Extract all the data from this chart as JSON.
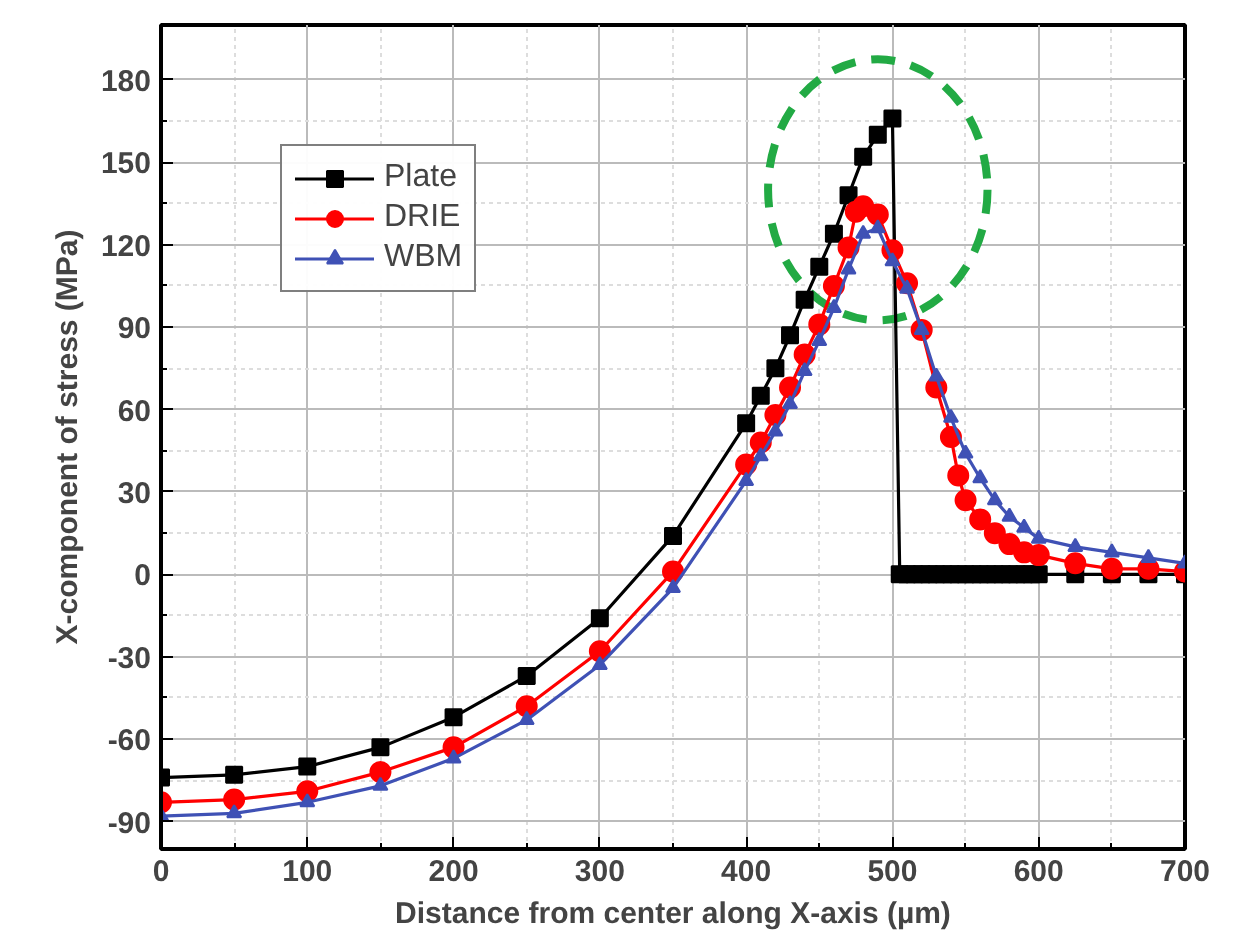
{
  "chart_data": {
    "type": "line",
    "xlabel": "Distance from center along X-axis (µm)",
    "ylabel": "X-component of stress (MPa)",
    "xlim": [
      0,
      700
    ],
    "ylim": [
      -100,
      200
    ],
    "xticks": [
      0,
      100,
      200,
      300,
      400,
      500,
      600,
      700
    ],
    "yticks": [
      -90,
      -60,
      -30,
      0,
      30,
      60,
      90,
      120,
      150,
      180
    ],
    "grid": true,
    "legend": "top left",
    "line_style": "solid",
    "series": [
      {
        "name": "Plate",
        "color": "#000000",
        "marker": "square",
        "x": [
          0,
          50,
          100,
          150,
          200,
          250,
          300,
          350,
          400,
          410,
          420,
          430,
          440,
          450,
          460,
          470,
          480,
          490,
          500,
          505,
          510,
          515,
          520,
          525,
          530,
          535,
          540,
          545,
          550,
          555,
          560,
          565,
          570,
          575,
          580,
          585,
          590,
          595,
          600,
          625,
          650,
          675,
          700
        ],
        "values": [
          -74,
          -73,
          -70,
          -63,
          -52,
          -37,
          -16,
          14,
          55,
          65,
          75,
          87,
          100,
          112,
          124,
          138,
          152,
          160,
          166,
          0,
          0,
          0,
          0,
          0,
          0,
          0,
          0,
          0,
          0,
          0,
          0,
          0,
          0,
          0,
          0,
          0,
          0,
          0,
          0,
          0,
          0,
          0,
          0
        ]
      },
      {
        "name": "DRIE",
        "color": "#ff0000",
        "marker": "circle",
        "x": [
          0,
          50,
          100,
          150,
          200,
          250,
          300,
          350,
          400,
          410,
          420,
          430,
          440,
          450,
          460,
          470,
          475,
          480,
          490,
          500,
          510,
          520,
          530,
          540,
          545,
          550,
          560,
          570,
          580,
          590,
          600,
          625,
          650,
          675,
          700
        ],
        "values": [
          -83,
          -82,
          -79,
          -72,
          -63,
          -48,
          -28,
          1,
          40,
          48,
          58,
          68,
          80,
          91,
          105,
          119,
          132,
          134,
          131,
          118,
          106,
          89,
          68,
          50,
          36,
          27,
          20,
          15,
          11,
          8,
          7,
          4,
          2,
          2,
          1
        ]
      },
      {
        "name": "WBM",
        "color": "#3f51b5",
        "marker": "triangle",
        "x": [
          0,
          50,
          100,
          150,
          200,
          250,
          300,
          350,
          400,
          410,
          420,
          430,
          440,
          450,
          460,
          470,
          480,
          490,
          500,
          510,
          520,
          530,
          540,
          550,
          560,
          570,
          580,
          590,
          600,
          625,
          650,
          675,
          700
        ],
        "values": [
          -88,
          -87,
          -83,
          -77,
          -67,
          -53,
          -33,
          -5,
          34,
          43,
          52,
          62,
          74,
          85,
          97,
          111,
          124,
          126,
          114,
          104,
          89,
          72,
          57,
          44,
          35,
          27,
          21,
          17,
          13,
          10,
          8,
          6,
          4
        ]
      }
    ]
  }
}
